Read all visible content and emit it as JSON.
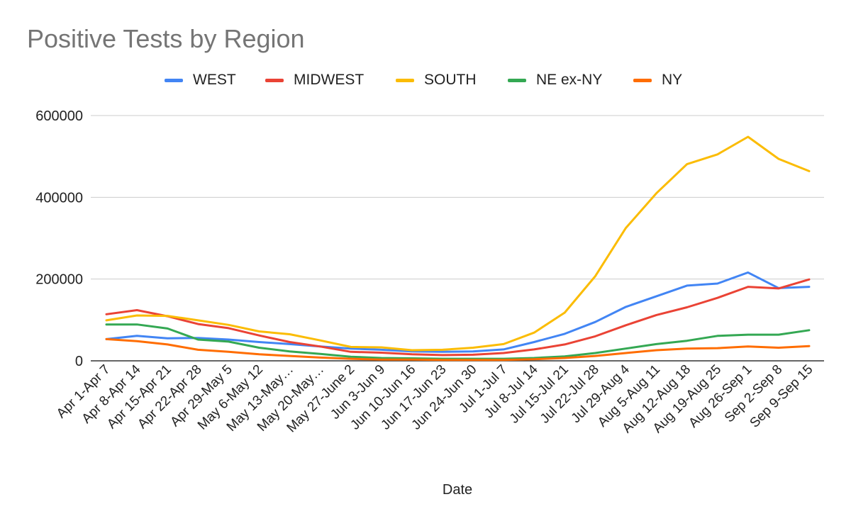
{
  "chart_data": {
    "type": "line",
    "title": "Positive Tests by Region",
    "xlabel": "Date",
    "ylabel": "",
    "ylim": [
      0,
      600000
    ],
    "yticks": [
      "0",
      "200000",
      "400000",
      "600000"
    ],
    "grid": true,
    "legend_position": "top",
    "categories": [
      "Apr 1-Apr 7",
      "Apr 8-Apr 14",
      "Apr 15-Apr 21",
      "Apr 22-Apr 28",
      "Apr 29-May 5",
      "May 6-May 12",
      "May 13-May…",
      "May 20-May…",
      "May 27-June 2",
      "Jun 3-Jun 9",
      "Jun 10-Jun 16",
      "Jun 17-Jun 23",
      "Jun 24-Jun 30",
      "Jul 1-Jul 7",
      "Jul 8-Jul 14",
      "Jul 15-Jul 21",
      "Jul 22-Jul 28",
      "Jul 29-Aug 4",
      "Aug 5-Aug 11",
      "Aug 12-Aug 18",
      "Aug 19-Aug 25",
      "Aug 26-Sep 1",
      "Sep 2-Sep 8",
      "Sep 9-Sep 15"
    ],
    "series": [
      {
        "name": "WEST",
        "color": "#4285f4",
        "values": [
          53000,
          61000,
          55000,
          56000,
          52000,
          46000,
          41000,
          35000,
          30000,
          27000,
          23000,
          22000,
          23000,
          28000,
          46000,
          66000,
          95000,
          132000,
          158000,
          184000,
          189000,
          216000,
          178000,
          181000
        ]
      },
      {
        "name": "MIDWEST",
        "color": "#ea4335",
        "values": [
          114000,
          124000,
          109000,
          90000,
          80000,
          62000,
          46000,
          35000,
          22000,
          20000,
          16000,
          14000,
          15000,
          19000,
          28000,
          40000,
          60000,
          87000,
          112000,
          131000,
          154000,
          181000,
          177000,
          199000
        ]
      },
      {
        "name": "SOUTH",
        "color": "#fbbc04",
        "values": [
          99000,
          111000,
          110000,
          99000,
          88000,
          72000,
          65000,
          50000,
          34000,
          33000,
          26000,
          27000,
          32000,
          41000,
          69000,
          118000,
          207000,
          325000,
          410000,
          481000,
          505000,
          548000,
          494000,
          464000
        ]
      },
      {
        "name": "NE ex-NY",
        "color": "#34a853",
        "values": [
          89000,
          89000,
          79000,
          52000,
          47000,
          32000,
          23000,
          17000,
          10000,
          7000,
          6000,
          5000,
          5000,
          5000,
          7000,
          11000,
          19000,
          30000,
          41000,
          49000,
          61000,
          64000,
          64000,
          75000
        ]
      },
      {
        "name": "NY",
        "color": "#ff6d01",
        "values": [
          53000,
          48000,
          40000,
          27000,
          22000,
          16000,
          12000,
          8000,
          5000,
          3000,
          3000,
          2000,
          2000,
          2000,
          4000,
          7000,
          12000,
          19000,
          26000,
          30000,
          31000,
          35000,
          32000,
          36000
        ]
      }
    ]
  }
}
